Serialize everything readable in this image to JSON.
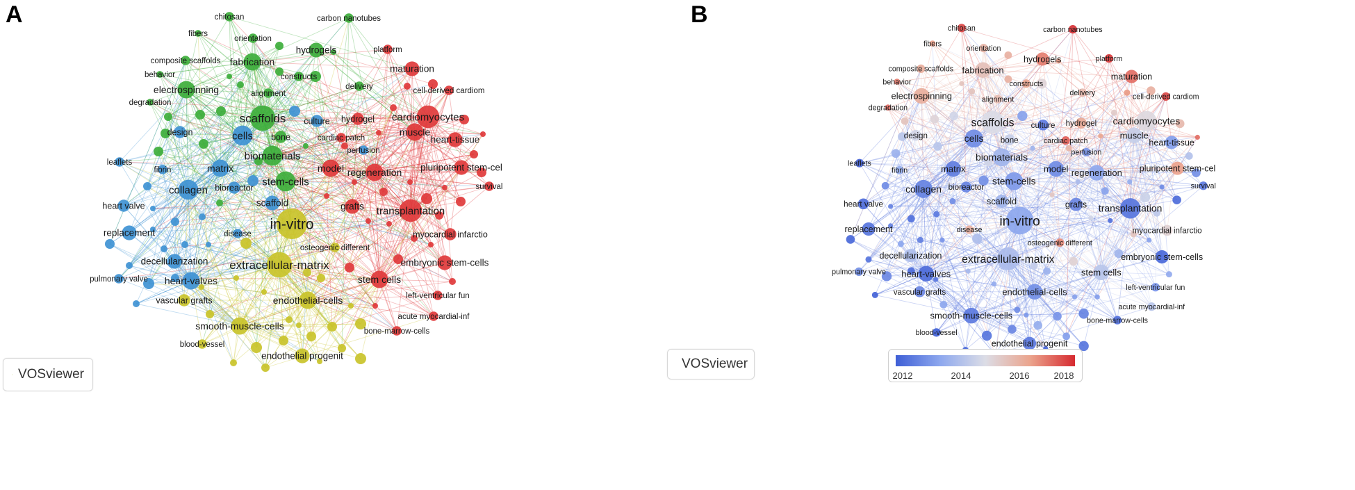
{
  "panels": {
    "a": {
      "letter": "A",
      "logo_text": "VOSviewer"
    },
    "b": {
      "letter": "B",
      "logo_text": "VOSviewer"
    }
  },
  "overlay_legend": {
    "ticks": [
      "2012",
      "2014",
      "2016",
      "2018"
    ],
    "colors": [
      "#3f5fd6",
      "#8ea8ee",
      "#dcdde6",
      "#eba48d",
      "#d62a30"
    ]
  },
  "cluster_colors": {
    "red": "#e0393b",
    "green": "#3dae3b",
    "blue": "#3f93d4",
    "yellow": "#c9c32a"
  },
  "terms": [
    {
      "id": "in-vitro",
      "label": "in-vitro",
      "cluster": "yellow",
      "weight": 10,
      "year": 2013.6
    },
    {
      "id": "scaffolds",
      "label": "scaffolds",
      "cluster": "green",
      "weight": 8,
      "year": 2015.2
    },
    {
      "id": "extracellular-matrix",
      "label": "extracellular-matrix",
      "cluster": "yellow",
      "weight": 8,
      "year": 2014.2
    },
    {
      "id": "cardiomyocytes",
      "label": "cardiomyocytes",
      "cluster": "red",
      "weight": 7,
      "year": 2015.4
    },
    {
      "id": "transplantation",
      "label": "transplantation",
      "cluster": "red",
      "weight": 7,
      "year": 2012.5
    },
    {
      "id": "cells",
      "label": "cells",
      "cluster": "blue",
      "weight": 6,
      "year": 2013.0
    },
    {
      "id": "stem-cells",
      "label": "stem-cells",
      "cluster": "green",
      "weight": 6,
      "year": 2013.3
    },
    {
      "id": "biomaterials",
      "label": "biomaterials",
      "cluster": "green",
      "weight": 6,
      "year": 2014.0
    },
    {
      "id": "collagen",
      "label": "collagen",
      "cluster": "blue",
      "weight": 6,
      "year": 2012.8
    },
    {
      "id": "fabrication",
      "label": "fabrication",
      "cluster": "green",
      "weight": 5,
      "year": 2016.1
    },
    {
      "id": "regeneration",
      "label": "regeneration",
      "cluster": "red",
      "weight": 5,
      "year": 2013.6
    },
    {
      "id": "model",
      "label": "model",
      "cluster": "red",
      "weight": 5,
      "year": 2013.0
    },
    {
      "id": "heart-valves",
      "label": "heart-valves",
      "cluster": "blue",
      "weight": 5,
      "year": 2012.3
    },
    {
      "id": "endothelial-cells",
      "label": "endothelial-cells",
      "cluster": "yellow",
      "weight": 5,
      "year": 2013.1
    },
    {
      "id": "smooth-muscle-cells",
      "label": "smooth-muscle-cells",
      "cluster": "yellow",
      "weight": 5,
      "year": 2012.6
    },
    {
      "id": "matrix",
      "label": "matrix",
      "cluster": "blue",
      "weight": 5,
      "year": 2012.7
    },
    {
      "id": "scaffold",
      "label": "scaffold",
      "cluster": "blue",
      "weight": 4,
      "year": 2014.0
    },
    {
      "id": "pluripotent-stem-cel",
      "label": "pluripotent stem-cel",
      "cluster": "red",
      "weight": 4,
      "year": 2016.9
    },
    {
      "id": "stem-cells-2",
      "label": "stem cells",
      "cluster": "red",
      "weight": 5,
      "year": 2014.5
    },
    {
      "id": "electrospinning",
      "label": "electrospinning",
      "cluster": "green",
      "weight": 5,
      "year": 2016.6
    },
    {
      "id": "muscle",
      "label": "muscle",
      "cluster": "red",
      "weight": 5,
      "year": 2014.8
    },
    {
      "id": "replacement",
      "label": "replacement",
      "cluster": "blue",
      "weight": 4,
      "year": 2012.5
    },
    {
      "id": "decellularization",
      "label": "decellularization",
      "cluster": "blue",
      "weight": 4,
      "year": 2014.3
    },
    {
      "id": "endothelial-progenit",
      "label": "endothelial progenit",
      "cluster": "yellow",
      "weight": 4,
      "year": 2012.6
    },
    {
      "id": "grafts",
      "label": "grafts",
      "cluster": "red",
      "weight": 4,
      "year": 2012.9
    },
    {
      "id": "heart-tissue",
      "label": "heart-tissue",
      "cluster": "red",
      "weight": 4,
      "year": 2013.4
    },
    {
      "id": "maturation",
      "label": "maturation",
      "cluster": "red",
      "weight": 4,
      "year": 2017.6
    },
    {
      "id": "hydrogels",
      "label": "hydrogels",
      "cluster": "green",
      "weight": 4,
      "year": 2017.4
    },
    {
      "id": "design",
      "label": "design",
      "cluster": "blue",
      "weight": 3,
      "year": 2015.0
    },
    {
      "id": "vascular-grafts",
      "label": "vascular grafts",
      "cluster": "yellow",
      "weight": 3,
      "year": 2012.9
    },
    {
      "id": "embryonic-stem-cells",
      "label": "embryonic stem-cells",
      "cluster": "red",
      "weight": 4,
      "year": 2012.2
    },
    {
      "id": "myocardial-infarctio",
      "label": "myocardial infarctio",
      "cluster": "red",
      "weight": 3,
      "year": 2015.6
    },
    {
      "id": "heart-valve",
      "label": "heart valve",
      "cluster": "blue",
      "weight": 3,
      "year": 2012.3
    },
    {
      "id": "bioreactor",
      "label": "bioreactor",
      "cluster": "blue",
      "weight": 3,
      "year": 2012.8
    },
    {
      "id": "culture",
      "label": "culture",
      "cluster": "blue",
      "weight": 3,
      "year": 2012.6
    },
    {
      "id": "hydrogel",
      "label": "hydrogel",
      "cluster": "red",
      "weight": 3,
      "year": 2016.7
    },
    {
      "id": "bone",
      "label": "bone",
      "cluster": "green",
      "weight": 3,
      "year": 2014.8
    },
    {
      "id": "cardiac-patch",
      "label": "cardiac patch",
      "cluster": "red",
      "weight": 2,
      "year": 2017.8
    },
    {
      "id": "perfusion",
      "label": "perfusion",
      "cluster": "blue",
      "weight": 2,
      "year": 2013.2
    },
    {
      "id": "fibrin",
      "label": "fibrin",
      "cluster": "blue",
      "weight": 2,
      "year": 2013.8
    },
    {
      "id": "leaflets",
      "label": "leaflets",
      "cluster": "blue",
      "weight": 2,
      "year": 2012.1
    },
    {
      "id": "disease",
      "label": "disease",
      "cluster": "blue",
      "weight": 2,
      "year": 2016.5
    },
    {
      "id": "osteogenic-different",
      "label": "osteogenic different",
      "cluster": "yellow",
      "weight": 2,
      "year": 2017.2
    },
    {
      "id": "pulmonary-valve",
      "label": "pulmonary valve",
      "cluster": "blue",
      "weight": 2,
      "year": 2013.1
    },
    {
      "id": "blood-vessel",
      "label": "blood-vessel",
      "cluster": "yellow",
      "weight": 2,
      "year": 2012.0
    },
    {
      "id": "bone-marrow-cells",
      "label": "bone-marrow-cells",
      "cluster": "red",
      "weight": 2,
      "year": 2012.4
    },
    {
      "id": "acute-myocardial-inf",
      "label": "acute myocardial-inf",
      "cluster": "red",
      "weight": 2,
      "year": 2014.5
    },
    {
      "id": "left-ventricular-fun",
      "label": "left-ventricular fun",
      "cluster": "red",
      "weight": 2,
      "year": 2013.2
    },
    {
      "id": "survival",
      "label": "survival",
      "cluster": "red",
      "weight": 2,
      "year": 2012.6
    },
    {
      "id": "cell-derived-cardiom",
      "label": "cell-derived cardiom",
      "cluster": "red",
      "weight": 2,
      "year": 2018.1
    },
    {
      "id": "delivery",
      "label": "delivery",
      "cluster": "green",
      "weight": 2,
      "year": 2016.3
    },
    {
      "id": "alignment",
      "label": "alignment",
      "cluster": "green",
      "weight": 2,
      "year": 2016.2
    },
    {
      "id": "constructs",
      "label": "constructs",
      "cluster": "green",
      "weight": 2,
      "year": 2016.8
    },
    {
      "id": "platform",
      "label": "platform",
      "cluster": "red",
      "weight": 2,
      "year": 2018.3
    },
    {
      "id": "composite-scaffolds",
      "label": "composite scaffolds",
      "cluster": "green",
      "weight": 2,
      "year": 2016.6
    },
    {
      "id": "behavior",
      "label": "behavior",
      "cluster": "green",
      "weight": 1,
      "year": 2017.4
    },
    {
      "id": "degradation",
      "label": "degradation",
      "cluster": "green",
      "weight": 1,
      "year": 2017.6
    },
    {
      "id": "fibers",
      "label": "fibers",
      "cluster": "green",
      "weight": 1,
      "year": 2016.9
    },
    {
      "id": "orientation",
      "label": "orientation",
      "cluster": "green",
      "weight": 2,
      "year": 2016.4
    },
    {
      "id": "chitosan",
      "label": "chitosan",
      "cluster": "green",
      "weight": 2,
      "year": 2018.1
    },
    {
      "id": "carbon-nanotubes",
      "label": "carbon nanotubes",
      "cluster": "green",
      "weight": 2,
      "year": 2018.4
    }
  ]
}
